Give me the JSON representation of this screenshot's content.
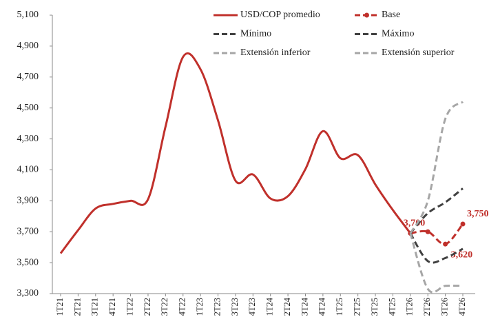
{
  "chart_data": {
    "type": "line",
    "categories": [
      "1T21",
      "2T21",
      "3T21",
      "4T21",
      "1T22",
      "2T22",
      "3T22",
      "4T22",
      "1T23",
      "2T23",
      "3T23",
      "4T23",
      "1T24",
      "2T24",
      "3T24",
      "4T24",
      "1T25",
      "2T25",
      "3T25",
      "4T25",
      "1T26",
      "2T26",
      "3T26",
      "4T26"
    ],
    "series": [
      {
        "name": "USD/COP promedio",
        "color": "#c0302b",
        "style": "solid",
        "markers": false,
        "values": [
          3560,
          3710,
          3850,
          3880,
          3900,
          3910,
          4380,
          4830,
          4750,
          4420,
          4030,
          4070,
          3915,
          3930,
          4105,
          4350,
          4175,
          4195,
          4005,
          3840,
          3690,
          null,
          null,
          null
        ]
      },
      {
        "name": "Base",
        "color": "#c0302b",
        "style": "dashed",
        "markers": true,
        "values": [
          null,
          null,
          null,
          null,
          null,
          null,
          null,
          null,
          null,
          null,
          null,
          null,
          null,
          null,
          null,
          null,
          null,
          null,
          null,
          null,
          3690,
          3700,
          3620,
          3750
        ],
        "value_labels": [
          null,
          null,
          null,
          null,
          null,
          null,
          null,
          null,
          null,
          null,
          null,
          null,
          null,
          null,
          null,
          null,
          null,
          null,
          null,
          null,
          null,
          "3,700",
          "3,620",
          "3,750"
        ]
      },
      {
        "name": "Mínimo",
        "color": "#404040",
        "style": "dashed",
        "markers": false,
        "values": [
          null,
          null,
          null,
          null,
          null,
          null,
          null,
          null,
          null,
          null,
          null,
          null,
          null,
          null,
          null,
          null,
          null,
          null,
          null,
          null,
          3690,
          3510,
          3530,
          3590
        ]
      },
      {
        "name": "Máximo",
        "color": "#404040",
        "style": "dashed",
        "markers": false,
        "values": [
          null,
          null,
          null,
          null,
          null,
          null,
          null,
          null,
          null,
          null,
          null,
          null,
          null,
          null,
          null,
          null,
          null,
          null,
          null,
          null,
          3690,
          3820,
          3890,
          3980
        ]
      },
      {
        "name": "Extensión inferior",
        "color": "#a6a6a6",
        "style": "dashed",
        "markers": false,
        "values": [
          null,
          null,
          null,
          null,
          null,
          null,
          null,
          null,
          null,
          null,
          null,
          null,
          null,
          null,
          null,
          null,
          null,
          null,
          null,
          null,
          3690,
          3330,
          3350,
          3350
        ]
      },
      {
        "name": "Extensión superior",
        "color": "#a6a6a6",
        "style": "dashed",
        "markers": false,
        "values": [
          null,
          null,
          null,
          null,
          null,
          null,
          null,
          null,
          null,
          null,
          null,
          null,
          null,
          null,
          null,
          null,
          null,
          null,
          null,
          null,
          3690,
          3900,
          4430,
          4540
        ]
      }
    ],
    "ylim": [
      3300,
      5100
    ],
    "yticks": [
      {
        "value": 3300,
        "label": "3,300"
      },
      {
        "value": 3500,
        "label": "3,500"
      },
      {
        "value": 3700,
        "label": "3,700"
      },
      {
        "value": 3900,
        "label": "3,900"
      },
      {
        "value": 4100,
        "label": "4,100"
      },
      {
        "value": 4300,
        "label": "4,300"
      },
      {
        "value": 4500,
        "label": "4,500"
      },
      {
        "value": 4700,
        "label": "4,700"
      },
      {
        "value": 4900,
        "label": "4,900"
      },
      {
        "value": 5100,
        "label": "5,100"
      }
    ],
    "grid": false,
    "legend": "top-right"
  }
}
